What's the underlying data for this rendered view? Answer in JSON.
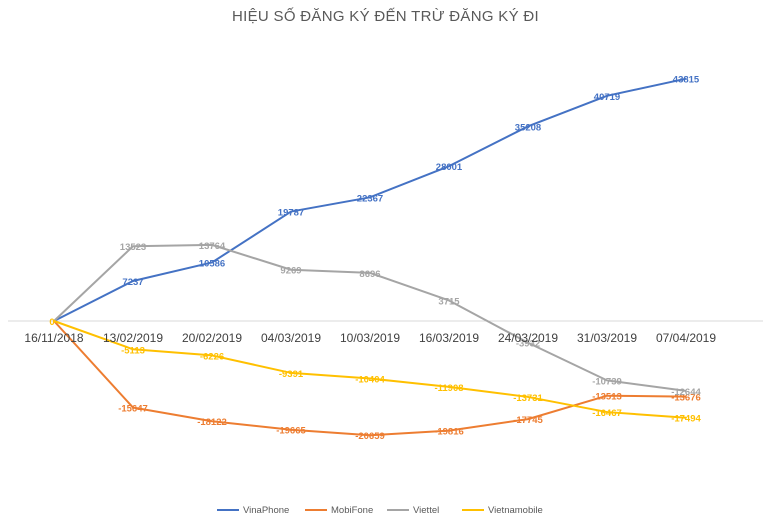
{
  "chart_data": {
    "type": "line",
    "title": "HIỆU SỐ ĐĂNG KÝ ĐẾN TRỪ ĐĂNG KÝ ĐI",
    "categories": [
      "16/11/2018",
      "13/02/2019",
      "20/02/2019",
      "04/03/2019",
      "10/03/2019",
      "16/03/2019",
      "24/03/2019",
      "31/03/2019",
      "07/04/2019"
    ],
    "series": [
      {
        "name": "VinaPhone",
        "color": "#4472C4",
        "values": [
          0,
          7237,
          10586,
          19787,
          22367,
          28001,
          35208,
          40719,
          43815
        ]
      },
      {
        "name": "MobiFone",
        "color": "#ED7D31",
        "values": [
          0,
          -15647,
          -18122,
          -19665,
          -20659,
          -19816,
          -17745,
          -13513,
          -13676
        ]
      },
      {
        "name": "Viettel",
        "color": "#A5A5A5",
        "values": [
          0,
          13523,
          13764,
          9269,
          8696,
          3715,
          -3932,
          -10739,
          -12644
        ]
      },
      {
        "name": "Vietnamobile",
        "color": "#FFC000",
        "values": [
          0,
          -5113,
          -6226,
          -9391,
          -10404,
          -11908,
          -13731,
          -16467,
          -17494
        ]
      }
    ],
    "xlabel": "",
    "ylabel": "",
    "ylim": [
      -35000,
      55000
    ],
    "grid": false,
    "legend_position": "bottom"
  }
}
